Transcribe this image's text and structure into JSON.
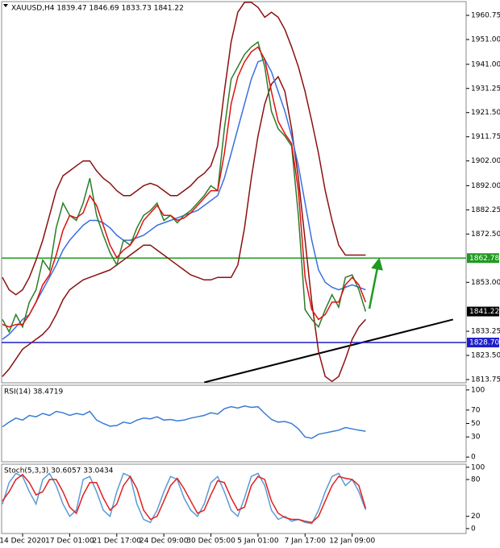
{
  "chart_data": [
    {
      "type": "line",
      "title": "XAUUSD,H4  1839.47 1846.69 1833.73 1841.22",
      "ylim": [
        1812.45,
        1966.3
      ],
      "yticks": [
        {
          "value": 1960.75,
          "label": "1960.75"
        },
        {
          "value": 1951,
          "label": "1951.00"
        },
        {
          "value": 1941,
          "label": "1941.00"
        },
        {
          "value": 1931.25,
          "label": "1931.25"
        },
        {
          "value": 1921.5,
          "label": "1921.50"
        },
        {
          "value": 1911.75,
          "label": "1911.75"
        },
        {
          "value": 1902,
          "label": "1902.00"
        },
        {
          "value": 1892,
          "label": "1892.00"
        },
        {
          "value": 1882.25,
          "label": "1882.25"
        },
        {
          "value": 1872.5,
          "label": "1872.50"
        },
        {
          "value": 1853,
          "label": "1853.00"
        },
        {
          "value": 1833.25,
          "label": "1833.25"
        },
        {
          "value": 1823.5,
          "label": "1823.50"
        },
        {
          "value": 1813.75,
          "label": "1813.75"
        }
      ],
      "hlines": [
        {
          "value": 1862.78,
          "label": "1862.78",
          "color": "#1f9a1f"
        },
        {
          "value": 1828.7,
          "label": "1828.70",
          "color": "#1f1fc8"
        },
        {
          "value": 1841.22,
          "label": "1841.22",
          "color": "#000000"
        }
      ],
      "trendline": {
        "x": [
          30,
          67
        ],
        "y": [
          1812.6,
          1838
        ],
        "color": "#000000"
      },
      "series": [
        {
          "color": "#8b1010",
          "values": [
            1855,
            1850,
            1848,
            1850,
            1855,
            1862,
            1870,
            1880,
            1890,
            1896,
            1898,
            1900,
            1902,
            1902,
            1898,
            1895,
            1893,
            1890,
            1888,
            1888,
            1890,
            1892,
            1893,
            1892,
            1890,
            1888,
            1888,
            1890,
            1892,
            1895,
            1897,
            1900,
            1908,
            1930,
            1950,
            1962,
            1966,
            1966,
            1964,
            1960,
            1962,
            1960,
            1955,
            1948,
            1940,
            1930,
            1918,
            1905,
            1890,
            1878,
            1868,
            1864,
            1864,
            1864,
            1864
          ]
        },
        {
          "color": "#8b1010",
          "values": [
            1815,
            1818,
            1822,
            1826,
            1828,
            1830,
            1832,
            1835,
            1840,
            1846,
            1850,
            1852,
            1854,
            1855,
            1856,
            1857,
            1858,
            1860,
            1862,
            1864,
            1866,
            1868,
            1868,
            1866,
            1864,
            1862,
            1860,
            1858,
            1856,
            1855,
            1854,
            1854,
            1855,
            1855,
            1855,
            1860,
            1875,
            1895,
            1912,
            1925,
            1933,
            1936,
            1930,
            1915,
            1895,
            1870,
            1845,
            1825,
            1815,
            1813,
            1815,
            1822,
            1830,
            1835,
            1838
          ]
        },
        {
          "color": "#3a6fe0",
          "values": [
            1830,
            1832,
            1835,
            1838,
            1840,
            1845,
            1850,
            1855,
            1860,
            1866,
            1870,
            1873,
            1876,
            1878,
            1878,
            1877,
            1875,
            1872,
            1870,
            1870,
            1871,
            1872,
            1874,
            1876,
            1877,
            1878,
            1879,
            1880,
            1881,
            1882,
            1884,
            1886,
            1888,
            1895,
            1905,
            1915,
            1925,
            1935,
            1942,
            1943,
            1938,
            1930,
            1922,
            1912,
            1900,
            1885,
            1870,
            1858,
            1853,
            1851,
            1850,
            1851,
            1852,
            1851,
            1850
          ]
        },
        {
          "color": "#2a7d2a",
          "values": [
            1838,
            1833,
            1840,
            1835,
            1845,
            1850,
            1862,
            1858,
            1875,
            1885,
            1880,
            1878,
            1885,
            1895,
            1880,
            1872,
            1865,
            1860,
            1870,
            1868,
            1875,
            1880,
            1882,
            1885,
            1878,
            1880,
            1877,
            1880,
            1882,
            1885,
            1888,
            1892,
            1890,
            1915,
            1935,
            1940,
            1945,
            1948,
            1950,
            1940,
            1922,
            1915,
            1912,
            1908,
            1880,
            1842,
            1838,
            1835,
            1842,
            1848,
            1843,
            1855,
            1856,
            1850,
            1841.22
          ]
        },
        {
          "color": "#e01010",
          "values": [
            1836,
            1835,
            1836,
            1836,
            1840,
            1845,
            1852,
            1856,
            1864,
            1874,
            1880,
            1879,
            1881,
            1888,
            1884,
            1876,
            1868,
            1863,
            1866,
            1868,
            1872,
            1878,
            1881,
            1884,
            1880,
            1880,
            1878,
            1879,
            1881,
            1884,
            1887,
            1890,
            1890,
            1905,
            1925,
            1936,
            1942,
            1946,
            1948,
            1943,
            1930,
            1918,
            1913,
            1909,
            1890,
            1855,
            1842,
            1838,
            1840,
            1845,
            1845,
            1852,
            1855,
            1852,
            1845
          ]
        }
      ]
    },
    {
      "type": "line",
      "title": "RSI(14) 38.4719",
      "ylim": [
        -7,
        107
      ],
      "yticks": [
        0,
        30,
        50,
        70,
        100
      ],
      "series": [
        {
          "color": "#3a7bd5",
          "values": [
            45,
            52,
            58,
            55,
            62,
            60,
            65,
            62,
            68,
            66,
            62,
            65,
            63,
            68,
            55,
            50,
            46,
            47,
            52,
            50,
            55,
            58,
            57,
            60,
            55,
            56,
            54,
            55,
            58,
            60,
            62,
            66,
            64,
            72,
            75,
            73,
            76,
            74,
            75,
            65,
            56,
            52,
            53,
            50,
            42,
            30,
            28,
            34,
            36,
            38,
            40,
            44,
            42,
            40,
            38.47
          ]
        }
      ]
    },
    {
      "type": "line",
      "title": "Stoch(5,3,3) 30.6057 33.0434",
      "ylim": [
        -8,
        105
      ],
      "yticks": [
        0,
        20,
        80,
        100
      ],
      "categories": [
        null,
        null,
        null,
        "14 Dec 2020",
        null,
        null,
        null,
        null,
        null,
        null,
        "17 Dec 01:00",
        null,
        null,
        null,
        null,
        null,
        null,
        "21 Dec 17:00",
        null,
        null,
        null,
        null,
        null,
        null,
        "24 Dec 09:00",
        null,
        null,
        null,
        null,
        null,
        null,
        "30 Dec 05:00",
        null,
        null,
        null,
        null,
        null,
        null,
        "5 Jan 01:00",
        null,
        null,
        null,
        null,
        null,
        null,
        "7 Jan 17:00",
        null,
        null,
        null,
        null,
        null,
        null,
        "12 Jan 09:00",
        null,
        null
      ],
      "series": [
        {
          "color": "#5b9bd5",
          "values": [
            40,
            75,
            90,
            85,
            60,
            40,
            80,
            90,
            70,
            40,
            20,
            30,
            80,
            85,
            60,
            30,
            20,
            60,
            90,
            85,
            40,
            15,
            10,
            30,
            60,
            85,
            80,
            50,
            30,
            20,
            40,
            75,
            85,
            60,
            30,
            20,
            50,
            85,
            90,
            70,
            30,
            15,
            20,
            12,
            15,
            10,
            8,
            30,
            60,
            85,
            90,
            70,
            80,
            60,
            30.61
          ]
        },
        {
          "color": "#e02020",
          "values": [
            45,
            60,
            80,
            88,
            75,
            55,
            60,
            80,
            80,
            60,
            35,
            25,
            55,
            75,
            75,
            50,
            30,
            40,
            70,
            85,
            65,
            30,
            15,
            20,
            45,
            70,
            82,
            65,
            45,
            25,
            30,
            55,
            78,
            75,
            50,
            30,
            35,
            70,
            85,
            80,
            45,
            25,
            18,
            15,
            15,
            12,
            10,
            20,
            45,
            70,
            85,
            82,
            80,
            70,
            33.04
          ]
        }
      ]
    }
  ]
}
